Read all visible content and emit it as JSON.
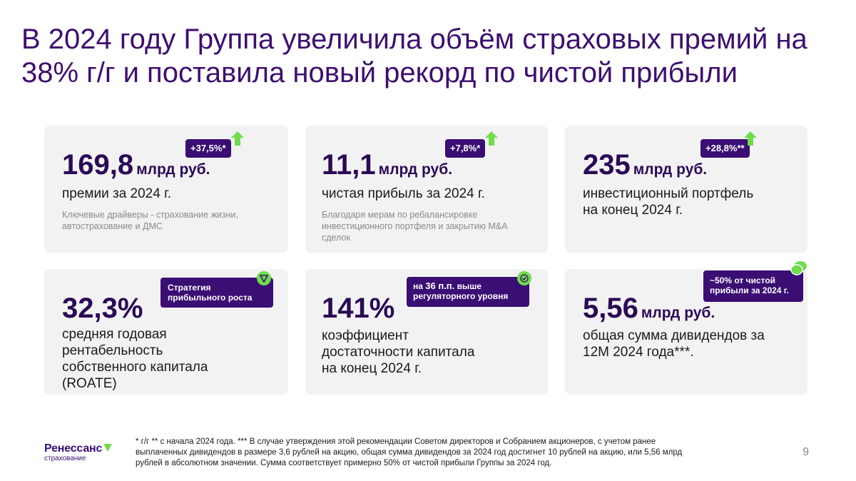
{
  "title": {
    "line1": "В 2024 году Группа увеличила объём страховых премий на",
    "line2": "38% г/г и поставила новый рекорд по чистой прибыли"
  },
  "cards": [
    {
      "value": "169,8",
      "unit": "млрд руб.",
      "description": "премии за 2024 г.",
      "note": "Ключевые драйверы - страхование жизни, автострахование и ДМС",
      "badge": "+37,5%*",
      "icon": "arrow-up-icon"
    },
    {
      "value": "11,1",
      "unit": "млрд руб.",
      "description": "чистая прибыль за 2024 г.",
      "note": "Благодаря мерам по ребалансировке инвестиционного портфеля и закрытию M&A сделок",
      "badge": "+7,8%*",
      "icon": "arrow-up-icon"
    },
    {
      "value": "235",
      "unit": "млрд руб.",
      "description_line1": "инвестиционный портфель",
      "description_line2": "на конец 2024 г.",
      "badge": "+28,8%**",
      "icon": "arrow-up-icon"
    },
    {
      "value": "32,3%",
      "description_line1": "средняя годовая",
      "description_line2": "рентабельность",
      "description_line3": "собственного капитала",
      "description_line4": "(ROATE)",
      "badge_line1": "Стратегия",
      "badge_line2": "прибыльного роста",
      "icon": "triangle-check-icon"
    },
    {
      "value": "141%",
      "description_line1": "коэффициент",
      "description_line2": "достаточности капитала",
      "description_line3": "на конец 2024 г.",
      "badge_line1_pre": "на ",
      "badge_line1_bold": "36 п.п.",
      "badge_line1_post": " выше",
      "badge_line2": "регуляторного уровня",
      "icon": "check-circle-icon"
    },
    {
      "value": "5,56",
      "unit": "млрд руб.",
      "description_line1": "общая сумма дивидендов за",
      "description_line2": "12М 2024 года***.",
      "badge_line1": "~50% от чистой",
      "badge_line2": "прибыли за 2024 г.",
      "icon": "coins-icon"
    }
  ],
  "footer": {
    "line1": "* г/г ** с начала 2024 года. *** В случае утверждения этой рекомендации Советом директоров и Собранием акционеров, с учетом ранее",
    "line2": "выплаченных дивидендов в размере 3,6 рублей на акцию, общая сумма дивидендов за 2024 год достигнет 10 рублей на акцию, или 5,56 млрд",
    "line3": "рублей в абсолютном значении. Сумма соответствует примерно 50% от чистой прибыли Группы за 2024 год.",
    "page_number": "9"
  },
  "logo": {
    "name": "Ренессанс",
    "sub": "страхование"
  },
  "colors": {
    "title": "#3d0f6e",
    "badge": "#3a0e72",
    "accent_green": "#6fdc4c",
    "card_bg": "#f2f2f2"
  }
}
